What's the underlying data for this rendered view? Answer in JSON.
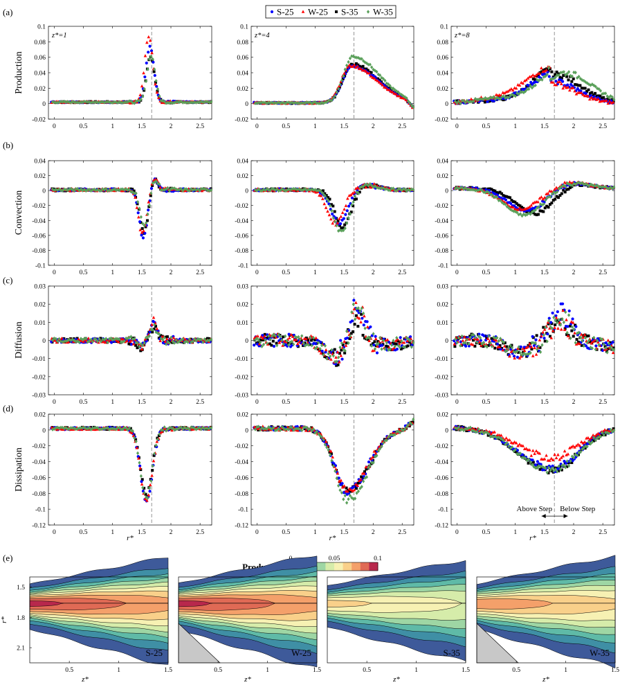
{
  "legend": [
    {
      "name": "S-25",
      "color": "#0000ff",
      "marker": "circle"
    },
    {
      "name": "W-25",
      "color": "#ff0000",
      "marker": "triangle"
    },
    {
      "name": "S-35",
      "color": "#000000",
      "marker": "square"
    },
    {
      "name": "W-35",
      "color": "#5aa05a",
      "marker": "diamond"
    }
  ],
  "row_tags": [
    "(a)",
    "(b)",
    "(c)",
    "(d)",
    "(e)"
  ],
  "row_labels": [
    "Production",
    "Convection",
    "Diffusion",
    "Dissipation"
  ],
  "col_annotations": [
    "z*=1",
    "z*=4",
    "z*=8"
  ],
  "xlabel": "r*",
  "x_ticks": [
    "0",
    "0.5",
    "1",
    "1.5",
    "2",
    "2.5"
  ],
  "step_annotation": {
    "above": "Above Step",
    "below": "Below Step"
  },
  "row_ticks": [
    [
      "0.1",
      "0.08",
      "0.06",
      "0.04",
      "0.02",
      "0",
      "-0.02"
    ],
    [
      "0.04",
      "0.02",
      "0",
      "-0.02",
      "-0.04",
      "-0.06",
      "-0.08",
      "-0.1"
    ],
    [
      "0.03",
      "0.02",
      "0.01",
      "0",
      "-0.01",
      "-0.02",
      "-0.03"
    ],
    [
      "0.02",
      "0",
      "-0.02",
      "-0.04",
      "-0.06",
      "-0.08",
      "-0.1",
      "-0.12"
    ]
  ],
  "contour": {
    "colorbar_title": "Production",
    "colorbar_ticks": [
      "0",
      "0.05",
      "0.1"
    ],
    "colorbar_range": [
      0,
      0.1
    ],
    "colors": [
      "#3e5a9a",
      "#3f8fa5",
      "#5fbaa7",
      "#9ed6a4",
      "#d6ecaa",
      "#f7f1b3",
      "#f9d08a",
      "#f4a06a",
      "#e06a55",
      "#b8284c"
    ],
    "panels": [
      "S-25",
      "W-25",
      "S-35",
      "W-35"
    ],
    "xlabel": "z*",
    "ylabel": "r*",
    "x_ticks": [
      "0.5",
      "1",
      "1.5"
    ],
    "y_ticks": [
      "1.5",
      "1.8",
      "2.1"
    ]
  },
  "chart_data": [
    {
      "type": "scatter",
      "panel": "(a) z*=1",
      "ylabel": "Production",
      "xlim": [
        -0.1,
        2.7
      ],
      "ylim": [
        -0.02,
        0.1
      ],
      "step_line_x": 1.67,
      "series": [
        {
          "name": "S-25",
          "peak": [
            1.64,
            0.072
          ]
        },
        {
          "name": "W-25",
          "peak": [
            1.62,
            0.085
          ]
        },
        {
          "name": "S-35",
          "peak": [
            1.66,
            0.058
          ]
        },
        {
          "name": "W-35",
          "peak": [
            1.67,
            0.06
          ]
        }
      ]
    },
    {
      "type": "scatter",
      "panel": "(a) z*=4",
      "ylabel": "Production",
      "xlim": [
        -0.1,
        2.7
      ],
      "ylim": [
        -0.02,
        0.1
      ],
      "step_line_x": 1.67,
      "series": [
        {
          "name": "S-25",
          "peak": [
            1.62,
            0.05
          ]
        },
        {
          "name": "W-25",
          "peak": [
            1.6,
            0.05
          ]
        },
        {
          "name": "S-35",
          "peak": [
            1.64,
            0.052
          ]
        },
        {
          "name": "W-35",
          "peak": [
            1.67,
            0.063
          ]
        }
      ]
    },
    {
      "type": "scatter",
      "panel": "(a) z*=8",
      "ylabel": "Production",
      "xlim": [
        -0.1,
        2.7
      ],
      "ylim": [
        -0.02,
        0.1
      ],
      "step_line_x": 1.67,
      "series": [
        {
          "name": "S-25",
          "peak": [
            1.6,
            0.03
          ]
        },
        {
          "name": "W-25",
          "peak": [
            1.55,
            0.028
          ]
        },
        {
          "name": "S-35",
          "peak": [
            1.67,
            0.04
          ]
        },
        {
          "name": "W-35",
          "peak": [
            1.9,
            0.043
          ]
        }
      ]
    },
    {
      "type": "scatter",
      "panel": "(b) z*=1",
      "ylabel": "Convection",
      "xlim": [
        -0.1,
        2.7
      ],
      "ylim": [
        -0.1,
        0.04
      ],
      "step_line_x": 1.67,
      "series": [
        {
          "name": "S-25",
          "min": [
            1.52,
            -0.065
          ]
        },
        {
          "name": "W-25",
          "min": [
            1.5,
            -0.06
          ]
        },
        {
          "name": "S-35",
          "min": [
            1.55,
            -0.06
          ]
        },
        {
          "name": "W-35",
          "min": [
            1.57,
            -0.05
          ]
        }
      ]
    },
    {
      "type": "scatter",
      "panel": "(b) z*=4",
      "ylabel": "Convection",
      "xlim": [
        -0.1,
        2.7
      ],
      "ylim": [
        -0.1,
        0.04
      ],
      "step_line_x": 1.67,
      "series": [
        {
          "name": "S-25",
          "min": [
            1.42,
            -0.045
          ]
        },
        {
          "name": "W-25",
          "min": [
            1.35,
            -0.045
          ]
        },
        {
          "name": "S-35",
          "min": [
            1.48,
            -0.05
          ]
        },
        {
          "name": "W-35",
          "min": [
            1.45,
            -0.058
          ]
        }
      ]
    },
    {
      "type": "scatter",
      "panel": "(b) z*=8",
      "ylabel": "Convection",
      "xlim": [
        -0.1,
        2.7
      ],
      "ylim": [
        -0.1,
        0.04
      ],
      "step_line_x": 1.67,
      "series": [
        {
          "name": "S-25",
          "min": [
            1.2,
            -0.028
          ]
        },
        {
          "name": "W-25",
          "min": [
            1.1,
            -0.026
          ]
        },
        {
          "name": "S-35",
          "min": [
            1.35,
            -0.033
          ]
        },
        {
          "name": "W-35",
          "min": [
            1.15,
            -0.036
          ]
        }
      ]
    },
    {
      "type": "scatter",
      "panel": "(c) z*=1",
      "ylabel": "Diffusion",
      "xlim": [
        -0.1,
        2.7
      ],
      "ylim": [
        -0.03,
        0.03
      ],
      "step_line_x": 1.67,
      "series": [
        {
          "name": "S-25",
          "peak": [
            1.7,
            0.009
          ]
        },
        {
          "name": "W-25",
          "peak": [
            1.69,
            0.011
          ]
        },
        {
          "name": "S-35",
          "peak": [
            1.72,
            0.007
          ]
        },
        {
          "name": "W-35",
          "peak": [
            1.7,
            0.008
          ]
        }
      ]
    },
    {
      "type": "scatter",
      "panel": "(c) z*=4",
      "ylabel": "Diffusion",
      "xlim": [
        -0.1,
        2.7
      ],
      "ylim": [
        -0.03,
        0.03
      ],
      "step_line_x": 1.67,
      "series": [
        {
          "name": "S-25",
          "peak": [
            1.78,
            0.022
          ]
        },
        {
          "name": "W-25",
          "peak": [
            1.72,
            0.019
          ]
        },
        {
          "name": "S-35",
          "peak": [
            1.75,
            0.011
          ]
        },
        {
          "name": "W-35",
          "peak": [
            1.7,
            0.02
          ]
        }
      ]
    },
    {
      "type": "scatter",
      "panel": "(c) z*=8",
      "ylabel": "Diffusion",
      "xlim": [
        -0.1,
        2.7
      ],
      "ylim": [
        -0.03,
        0.03
      ],
      "step_line_x": 1.67,
      "series": [
        {
          "name": "S-25",
          "peak": [
            1.72,
            0.018
          ]
        },
        {
          "name": "W-25",
          "peak": [
            1.75,
            0.012
          ]
        },
        {
          "name": "S-35",
          "peak": [
            1.8,
            0.012
          ]
        },
        {
          "name": "W-35",
          "peak": [
            1.7,
            0.013
          ]
        }
      ]
    },
    {
      "type": "scatter",
      "panel": "(d) z*=1",
      "ylabel": "Dissipation",
      "xlim": [
        -0.1,
        2.7
      ],
      "ylim": [
        -0.12,
        0.02
      ],
      "step_line_x": 1.67,
      "series": [
        {
          "name": "S-25",
          "min": [
            1.58,
            -0.093
          ]
        },
        {
          "name": "W-25",
          "min": [
            1.58,
            -0.092
          ]
        },
        {
          "name": "S-35",
          "min": [
            1.6,
            -0.085
          ]
        },
        {
          "name": "W-35",
          "min": [
            1.6,
            -0.088
          ]
        }
      ]
    },
    {
      "type": "scatter",
      "panel": "(d) z*=4",
      "ylabel": "Dissipation",
      "xlim": [
        -0.1,
        2.7
      ],
      "ylim": [
        -0.12,
        0.02
      ],
      "step_line_x": 1.67,
      "series": [
        {
          "name": "S-25",
          "min": [
            1.55,
            -0.08
          ]
        },
        {
          "name": "W-25",
          "min": [
            1.55,
            -0.078
          ]
        },
        {
          "name": "S-35",
          "min": [
            1.57,
            -0.08
          ]
        },
        {
          "name": "W-35",
          "min": [
            1.6,
            -0.09
          ]
        }
      ]
    },
    {
      "type": "scatter",
      "panel": "(d) z*=8",
      "ylabel": "Dissipation",
      "xlim": [
        -0.1,
        2.7
      ],
      "ylim": [
        -0.12,
        0.02
      ],
      "step_line_x": 1.67,
      "series": [
        {
          "name": "S-25",
          "min": [
            1.6,
            -0.052
          ]
        },
        {
          "name": "W-25",
          "min": [
            1.5,
            -0.037
          ]
        },
        {
          "name": "S-35",
          "min": [
            1.65,
            -0.055
          ]
        },
        {
          "name": "W-35",
          "min": [
            1.65,
            -0.055
          ]
        }
      ]
    },
    {
      "type": "heatmap",
      "panel": "(e)",
      "title": "Production",
      "xlabel": "z*",
      "ylabel": "r*",
      "xlim": [
        0.1,
        1.5
      ],
      "ylim": [
        2.25,
        1.4
      ],
      "colorbar_range": [
        0,
        0.1
      ],
      "panels": [
        "S-25",
        "W-25",
        "S-35",
        "W-35"
      ]
    }
  ]
}
